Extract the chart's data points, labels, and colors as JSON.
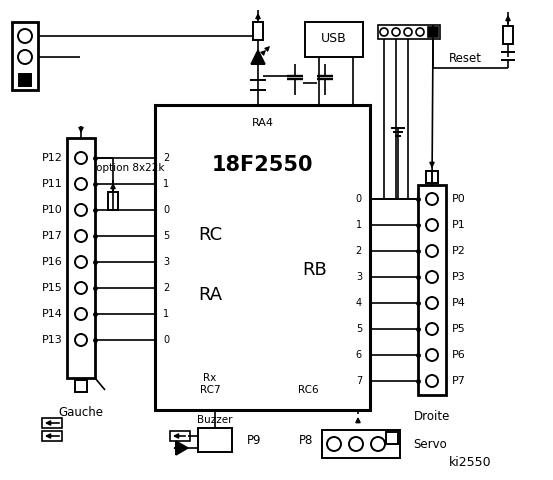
{
  "bg": "#ffffff",
  "chip_label": "18F2550",
  "ra4_label": "RA4",
  "rc_label": "RC",
  "ra_label": "RA",
  "rb_label": "RB",
  "rx_label": "Rx",
  "rc7_label": "RC7",
  "rc6_label": "RC6",
  "usb_label": "USB",
  "reset_label": "Reset",
  "left_label": "Gauche",
  "right_label": "Droite",
  "option_label": "option 8x22k",
  "buzzer_label": "Buzzer",
  "servo_label": "Servo",
  "ki_label": "ki2550",
  "p9_label": "P9",
  "p8_label": "P8",
  "left_pin_labels": [
    "P12",
    "P11",
    "P10",
    "P17",
    "P16",
    "P15",
    "P14",
    "P13"
  ],
  "left_rc_nums": [
    "2",
    "1",
    "0",
    "5",
    "3",
    "2",
    "1",
    "0"
  ],
  "right_pin_labels": [
    "P0",
    "P1",
    "P2",
    "P3",
    "P4",
    "P5",
    "P6",
    "P7"
  ],
  "right_rb_nums": [
    "0",
    "1",
    "2",
    "3",
    "4",
    "5",
    "6",
    "7"
  ]
}
